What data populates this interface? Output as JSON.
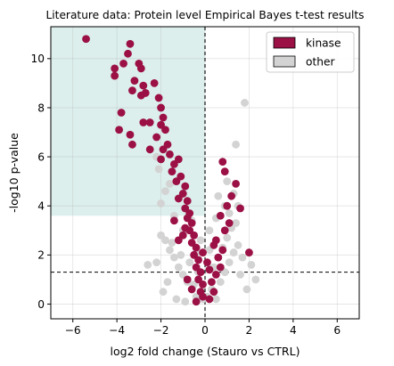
{
  "chart_data": {
    "type": "scatter",
    "title": "Literature data: Protein level Empirical Bayes t-test results",
    "xlabel": "log2 fold change (Stauro vs CTRL)",
    "ylabel": "-log10 p-value",
    "xlim": [
      -7,
      7
    ],
    "ylim": [
      -0.6,
      11.3
    ],
    "xticks": [
      -6,
      -4,
      -2,
      0,
      2,
      4,
      6
    ],
    "yticks": [
      0,
      2,
      4,
      6,
      8,
      10
    ],
    "grid": true,
    "legend_position": "top-right",
    "threshold_lines": {
      "vertical_x": 0,
      "horizontal_y": 1.3
    },
    "highlight_region": {
      "x": [
        -7,
        0
      ],
      "y": [
        3.6,
        11.3
      ],
      "color": "#dcefec"
    },
    "series": [
      {
        "name": "other",
        "color": "#d3d3d3",
        "points": [
          [
            -0.1,
            0.2
          ],
          [
            -0.2,
            0.5
          ],
          [
            -0.4,
            0.3
          ],
          [
            -0.6,
            0.6
          ],
          [
            -0.8,
            0.9
          ],
          [
            -1.0,
            1.2
          ],
          [
            -1.2,
            1.5
          ],
          [
            -1.4,
            1.9
          ],
          [
            -1.6,
            2.2
          ],
          [
            -1.8,
            2.6
          ],
          [
            -2.0,
            2.8
          ],
          [
            -2.2,
            1.7
          ],
          [
            -2.6,
            1.6
          ],
          [
            -1.9,
            0.5
          ],
          [
            -1.7,
            0.9
          ],
          [
            -1.3,
            0.2
          ],
          [
            -0.9,
            0.1
          ],
          [
            -0.5,
            0.8
          ],
          [
            -0.3,
            1.3
          ],
          [
            -0.7,
            1.7
          ],
          [
            -1.1,
            2.0
          ],
          [
            -1.5,
            2.5
          ],
          [
            -1.0,
            3.0
          ],
          [
            -0.6,
            3.4
          ],
          [
            -1.4,
            3.6
          ],
          [
            -1.8,
            4.6
          ],
          [
            -2.0,
            4.1
          ],
          [
            -2.1,
            5.5
          ],
          [
            -2.2,
            6.0
          ],
          [
            -1.6,
            4.9
          ],
          [
            0.1,
            0.3
          ],
          [
            0.3,
            0.6
          ],
          [
            0.5,
            0.2
          ],
          [
            0.7,
            0.9
          ],
          [
            0.9,
            1.3
          ],
          [
            1.1,
            1.7
          ],
          [
            1.3,
            2.1
          ],
          [
            1.5,
            2.4
          ],
          [
            0.4,
            1.5
          ],
          [
            0.6,
            1.9
          ],
          [
            0.8,
            2.3
          ],
          [
            1.0,
            2.7
          ],
          [
            1.2,
            3.1
          ],
          [
            1.4,
            3.3
          ],
          [
            0.5,
            3.5
          ],
          [
            0.9,
            4.0
          ],
          [
            0.6,
            4.4
          ],
          [
            1.3,
            4.5
          ],
          [
            1.5,
            4.0
          ],
          [
            1.1,
            3.7
          ],
          [
            1.8,
            8.2
          ],
          [
            1.4,
            6.5
          ],
          [
            1.0,
            5.0
          ],
          [
            1.6,
            1.2
          ],
          [
            1.9,
            0.6
          ],
          [
            2.3,
            1.0
          ],
          [
            0.2,
            2.2
          ],
          [
            0.2,
            3.0
          ],
          [
            -0.2,
            2.6
          ],
          [
            1.7,
            1.9
          ],
          [
            2.1,
            1.6
          ],
          [
            -0.4,
            2.1
          ]
        ]
      },
      {
        "name": "kinase",
        "color": "#9b1045",
        "points": [
          [
            -5.4,
            10.8
          ],
          [
            -3.4,
            10.6
          ],
          [
            -3.5,
            10.2
          ],
          [
            -4.1,
            9.6
          ],
          [
            -3.7,
            9.8
          ],
          [
            -4.1,
            9.3
          ],
          [
            -3.0,
            9.8
          ],
          [
            -2.9,
            9.6
          ],
          [
            -3.2,
            9.1
          ],
          [
            -2.8,
            8.9
          ],
          [
            -2.9,
            8.5
          ],
          [
            -2.7,
            8.6
          ],
          [
            -3.3,
            8.7
          ],
          [
            -2.3,
            9.0
          ],
          [
            -2.1,
            8.4
          ],
          [
            -3.8,
            7.8
          ],
          [
            -3.9,
            7.1
          ],
          [
            -2.0,
            8.0
          ],
          [
            -1.9,
            7.6
          ],
          [
            -2.8,
            7.4
          ],
          [
            -2.5,
            7.4
          ],
          [
            -2.0,
            7.3
          ],
          [
            -1.8,
            7.1
          ],
          [
            -3.4,
            6.9
          ],
          [
            -3.3,
            6.5
          ],
          [
            -2.2,
            6.8
          ],
          [
            -1.7,
            6.5
          ],
          [
            -1.9,
            6.3
          ],
          [
            -2.5,
            6.3
          ],
          [
            -2.0,
            5.9
          ],
          [
            -1.6,
            6.1
          ],
          [
            -1.4,
            5.7
          ],
          [
            -1.2,
            5.9
          ],
          [
            -1.5,
            5.4
          ],
          [
            -1.1,
            5.2
          ],
          [
            -1.3,
            5.0
          ],
          [
            -0.9,
            4.8
          ],
          [
            -1.0,
            4.5
          ],
          [
            -1.2,
            4.3
          ],
          [
            -0.8,
            4.2
          ],
          [
            -0.9,
            3.9
          ],
          [
            -0.7,
            3.7
          ],
          [
            -0.8,
            3.5
          ],
          [
            -0.6,
            3.3
          ],
          [
            -0.7,
            3.0
          ],
          [
            -0.5,
            2.8
          ],
          [
            -0.6,
            2.5
          ],
          [
            -0.4,
            2.3
          ],
          [
            -0.5,
            2.0
          ],
          [
            -0.3,
            1.8
          ],
          [
            -0.4,
            1.5
          ],
          [
            -0.2,
            1.3
          ],
          [
            -0.3,
            1.0
          ],
          [
            -0.1,
            0.8
          ],
          [
            -0.2,
            0.5
          ],
          [
            -0.1,
            0.3
          ],
          [
            -0.4,
            0.1
          ],
          [
            -0.6,
            0.6
          ],
          [
            -0.8,
            1.0
          ],
          [
            -1.0,
            2.8
          ],
          [
            -1.2,
            2.6
          ],
          [
            -1.4,
            3.4
          ],
          [
            -0.9,
            3.1
          ],
          [
            0.2,
            0.2
          ],
          [
            0.4,
            0.5
          ],
          [
            0.3,
            0.9
          ],
          [
            0.5,
            1.2
          ],
          [
            0.7,
            1.5
          ],
          [
            0.6,
            1.9
          ],
          [
            0.8,
            2.2
          ],
          [
            0.5,
            2.6
          ],
          [
            0.9,
            3.0
          ],
          [
            1.1,
            3.3
          ],
          [
            0.7,
            3.6
          ],
          [
            1.0,
            4.0
          ],
          [
            1.2,
            4.4
          ],
          [
            1.4,
            4.9
          ],
          [
            0.9,
            5.4
          ],
          [
            0.8,
            5.8
          ],
          [
            1.6,
            3.9
          ],
          [
            2.0,
            2.1
          ],
          [
            0.2,
            1.4
          ],
          [
            0.1,
            1.7
          ],
          [
            -0.1,
            2.1
          ],
          [
            0.4,
            2.4
          ]
        ]
      }
    ]
  }
}
